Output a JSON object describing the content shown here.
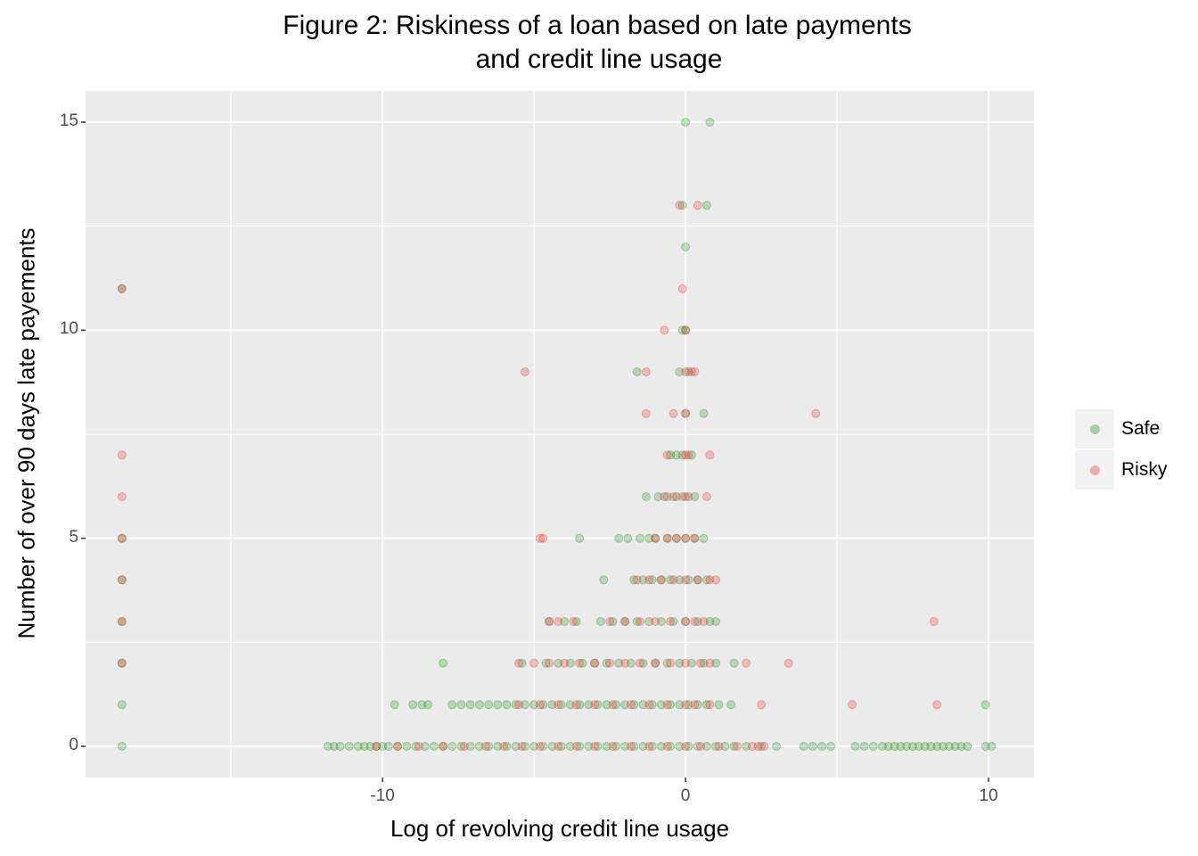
{
  "chart_data": {
    "type": "scatter",
    "title": "Figure 2: Riskiness of a loan based on late payments",
    "title_line2": "and credit line usage",
    "xlabel": "Log of revolving credit line usage",
    "ylabel": "Number of over 90 days late payements",
    "xlim": [
      -19.8,
      11.5
    ],
    "ylim": [
      -0.75,
      15.75
    ],
    "x_ticks": [
      -10,
      0,
      10
    ],
    "x_tick_labels": [
      "-10",
      "0",
      "10"
    ],
    "y_ticks": [
      0,
      5,
      10,
      15
    ],
    "y_tick_labels": [
      "0",
      "5",
      "10",
      "15"
    ],
    "x_minor_gridlines": [
      -15,
      -5,
      5
    ],
    "y_minor_gridlines": [
      2.5,
      7.5,
      12.5
    ],
    "grid": true,
    "panel_background": "#ebebeb",
    "legend_position": "right",
    "marker_alpha": 0.25,
    "series": [
      {
        "name": "Safe",
        "color": "#228b22",
        "points": [
          [
            -18.6,
            0
          ],
          [
            -18.6,
            1
          ],
          [
            -18.6,
            2
          ],
          [
            -18.6,
            3
          ],
          [
            -18.6,
            4
          ],
          [
            -18.6,
            5
          ],
          [
            -18.6,
            11
          ],
          [
            -11.8,
            0
          ],
          [
            -11.6,
            0
          ],
          [
            -11.4,
            0
          ],
          [
            -11.1,
            0
          ],
          [
            -10.8,
            0
          ],
          [
            -10.6,
            0
          ],
          [
            -10.4,
            0
          ],
          [
            -10.2,
            0
          ],
          [
            -10.0,
            0
          ],
          [
            -9.8,
            0
          ],
          [
            -9.5,
            0
          ],
          [
            -9.2,
            0
          ],
          [
            -8.9,
            0
          ],
          [
            -8.6,
            0
          ],
          [
            -8.3,
            0
          ],
          [
            -8.0,
            0
          ],
          [
            -7.7,
            0
          ],
          [
            -7.4,
            0
          ],
          [
            -7.1,
            0
          ],
          [
            -6.8,
            0
          ],
          [
            -6.5,
            0
          ],
          [
            -6.2,
            0
          ],
          [
            -5.9,
            0
          ],
          [
            -5.6,
            0
          ],
          [
            -5.3,
            0
          ],
          [
            -5.0,
            0
          ],
          [
            -4.7,
            0
          ],
          [
            -4.4,
            0
          ],
          [
            -4.1,
            0
          ],
          [
            -3.8,
            0
          ],
          [
            -3.5,
            0
          ],
          [
            -3.2,
            0
          ],
          [
            -2.9,
            0
          ],
          [
            -2.6,
            0
          ],
          [
            -2.3,
            0
          ],
          [
            -2.0,
            0
          ],
          [
            -1.7,
            0
          ],
          [
            -1.4,
            0
          ],
          [
            -1.1,
            0
          ],
          [
            -0.8,
            0
          ],
          [
            -0.5,
            0
          ],
          [
            -0.2,
            0
          ],
          [
            0.1,
            0
          ],
          [
            0.4,
            0
          ],
          [
            0.7,
            0
          ],
          [
            1.0,
            0
          ],
          [
            1.3,
            0
          ],
          [
            1.6,
            0
          ],
          [
            2.0,
            0
          ],
          [
            2.5,
            0
          ],
          [
            3.0,
            0
          ],
          [
            3.9,
            0
          ],
          [
            4.2,
            0
          ],
          [
            4.5,
            0
          ],
          [
            4.8,
            0
          ],
          [
            5.6,
            0
          ],
          [
            5.9,
            0
          ],
          [
            6.2,
            0
          ],
          [
            6.5,
            0
          ],
          [
            6.7,
            0
          ],
          [
            6.9,
            0
          ],
          [
            7.1,
            0
          ],
          [
            7.3,
            0
          ],
          [
            7.5,
            0
          ],
          [
            7.7,
            0
          ],
          [
            7.9,
            0
          ],
          [
            8.1,
            0
          ],
          [
            8.3,
            0
          ],
          [
            8.5,
            0
          ],
          [
            8.7,
            0
          ],
          [
            8.9,
            0
          ],
          [
            9.1,
            0
          ],
          [
            9.3,
            0
          ],
          [
            9.9,
            0
          ],
          [
            10.1,
            0
          ],
          [
            -9.6,
            1
          ],
          [
            -9.0,
            1
          ],
          [
            -8.7,
            1
          ],
          [
            -8.5,
            1
          ],
          [
            -7.7,
            1
          ],
          [
            -7.4,
            1
          ],
          [
            -7.1,
            1
          ],
          [
            -6.8,
            1
          ],
          [
            -6.5,
            1
          ],
          [
            -6.2,
            1
          ],
          [
            -5.9,
            1
          ],
          [
            -5.6,
            1
          ],
          [
            -5.3,
            1
          ],
          [
            -5.0,
            1
          ],
          [
            -4.7,
            1
          ],
          [
            -4.4,
            1
          ],
          [
            -4.1,
            1
          ],
          [
            -3.8,
            1
          ],
          [
            -3.5,
            1
          ],
          [
            -3.2,
            1
          ],
          [
            -2.9,
            1
          ],
          [
            -2.6,
            1
          ],
          [
            -2.3,
            1
          ],
          [
            -2.0,
            1
          ],
          [
            -1.7,
            1
          ],
          [
            -1.4,
            1
          ],
          [
            -1.1,
            1
          ],
          [
            -0.8,
            1
          ],
          [
            -0.5,
            1
          ],
          [
            -0.2,
            1
          ],
          [
            0.1,
            1
          ],
          [
            0.4,
            1
          ],
          [
            0.7,
            1
          ],
          [
            1.1,
            1
          ],
          [
            1.5,
            1
          ],
          [
            9.9,
            1
          ],
          [
            -8.0,
            2
          ],
          [
            -5.4,
            2
          ],
          [
            -4.6,
            2
          ],
          [
            -4.2,
            2
          ],
          [
            -3.8,
            2
          ],
          [
            -3.4,
            2
          ],
          [
            -3.0,
            2
          ],
          [
            -2.6,
            2
          ],
          [
            -2.2,
            2
          ],
          [
            -1.8,
            2
          ],
          [
            -1.4,
            2
          ],
          [
            -1.0,
            2
          ],
          [
            -0.6,
            2
          ],
          [
            -0.2,
            2
          ],
          [
            0.2,
            2
          ],
          [
            0.6,
            2
          ],
          [
            1.0,
            2
          ],
          [
            1.6,
            2
          ],
          [
            -4.5,
            3
          ],
          [
            -4.0,
            3
          ],
          [
            -3.6,
            3
          ],
          [
            -2.8,
            3
          ],
          [
            -2.4,
            3
          ],
          [
            -2.0,
            3
          ],
          [
            -1.6,
            3
          ],
          [
            -1.2,
            3
          ],
          [
            -0.8,
            3
          ],
          [
            -0.4,
            3
          ],
          [
            0.0,
            3
          ],
          [
            0.4,
            3
          ],
          [
            0.8,
            3
          ],
          [
            1.0,
            3
          ],
          [
            -2.7,
            4
          ],
          [
            -1.7,
            4
          ],
          [
            -1.4,
            4
          ],
          [
            -1.1,
            4
          ],
          [
            -0.8,
            4
          ],
          [
            -0.5,
            4
          ],
          [
            -0.2,
            4
          ],
          [
            0.1,
            4
          ],
          [
            0.4,
            4
          ],
          [
            0.7,
            4
          ],
          [
            -3.5,
            5
          ],
          [
            -2.2,
            5
          ],
          [
            -1.9,
            5
          ],
          [
            -1.5,
            5
          ],
          [
            -1.2,
            5
          ],
          [
            -1.0,
            5
          ],
          [
            -0.6,
            5
          ],
          [
            -0.3,
            5
          ],
          [
            0.0,
            5
          ],
          [
            0.3,
            5
          ],
          [
            0.6,
            5
          ],
          [
            -1.3,
            6
          ],
          [
            -0.9,
            6
          ],
          [
            -0.6,
            6
          ],
          [
            -0.3,
            6
          ],
          [
            0.0,
            6
          ],
          [
            0.3,
            6
          ],
          [
            -0.5,
            7
          ],
          [
            -0.3,
            7
          ],
          [
            -0.1,
            7
          ],
          [
            0.2,
            7
          ],
          [
            0.0,
            8
          ],
          [
            0.6,
            8
          ],
          [
            -1.6,
            9
          ],
          [
            -0.2,
            9
          ],
          [
            0.1,
            9
          ],
          [
            -0.1,
            10
          ],
          [
            0.0,
            10
          ],
          [
            0.0,
            12
          ],
          [
            -0.1,
            13
          ],
          [
            0.7,
            13
          ],
          [
            0.0,
            15
          ],
          [
            0.8,
            15
          ]
        ]
      },
      {
        "name": "Risky",
        "color": "#e8302a",
        "points": [
          [
            -18.6,
            2
          ],
          [
            -18.6,
            3
          ],
          [
            -18.6,
            4
          ],
          [
            -18.6,
            5
          ],
          [
            -18.6,
            6
          ],
          [
            -18.6,
            7
          ],
          [
            -18.6,
            11
          ],
          [
            -10.2,
            0
          ],
          [
            -9.5,
            0
          ],
          [
            -8.8,
            0
          ],
          [
            -8.0,
            0
          ],
          [
            -7.3,
            0
          ],
          [
            -6.6,
            0
          ],
          [
            -6.0,
            0
          ],
          [
            -5.4,
            0
          ],
          [
            -4.8,
            0
          ],
          [
            -4.2,
            0
          ],
          [
            -3.6,
            0
          ],
          [
            -3.0,
            0
          ],
          [
            -2.4,
            0
          ],
          [
            -1.8,
            0
          ],
          [
            -1.2,
            0
          ],
          [
            -0.6,
            0
          ],
          [
            0.0,
            0
          ],
          [
            0.5,
            0
          ],
          [
            1.1,
            0
          ],
          [
            1.7,
            0
          ],
          [
            2.2,
            0
          ],
          [
            2.4,
            0
          ],
          [
            2.6,
            0
          ],
          [
            -5.5,
            1
          ],
          [
            -4.8,
            1
          ],
          [
            -4.2,
            1
          ],
          [
            -3.6,
            1
          ],
          [
            -3.0,
            1
          ],
          [
            -2.4,
            1
          ],
          [
            -1.8,
            1
          ],
          [
            -1.2,
            1
          ],
          [
            -0.6,
            1
          ],
          [
            0.0,
            1
          ],
          [
            0.3,
            1
          ],
          [
            0.8,
            1
          ],
          [
            2.5,
            1
          ],
          [
            5.5,
            1
          ],
          [
            8.3,
            1
          ],
          [
            -5.5,
            2
          ],
          [
            -5.0,
            2
          ],
          [
            -4.5,
            2
          ],
          [
            -4.0,
            2
          ],
          [
            -3.5,
            2
          ],
          [
            -3.0,
            2
          ],
          [
            -2.5,
            2
          ],
          [
            -2.0,
            2
          ],
          [
            -1.5,
            2
          ],
          [
            -1.0,
            2
          ],
          [
            -0.5,
            2
          ],
          [
            0.0,
            2
          ],
          [
            0.5,
            2
          ],
          [
            0.8,
            2
          ],
          [
            2.0,
            2
          ],
          [
            3.4,
            2
          ],
          [
            -4.5,
            3
          ],
          [
            -4.2,
            3
          ],
          [
            -3.7,
            3
          ],
          [
            -2.5,
            3
          ],
          [
            -2.0,
            3
          ],
          [
            -1.5,
            3
          ],
          [
            -1.0,
            3
          ],
          [
            -0.5,
            3
          ],
          [
            0.0,
            3
          ],
          [
            0.3,
            3
          ],
          [
            0.6,
            3
          ],
          [
            8.2,
            3
          ],
          [
            -1.6,
            4
          ],
          [
            -1.2,
            4
          ],
          [
            -0.8,
            4
          ],
          [
            -0.4,
            4
          ],
          [
            0.0,
            4
          ],
          [
            0.4,
            4
          ],
          [
            0.8,
            4
          ],
          [
            1.0,
            4
          ],
          [
            -4.7,
            5
          ],
          [
            -4.8,
            5
          ],
          [
            -1.0,
            5
          ],
          [
            -0.6,
            5
          ],
          [
            -0.3,
            5
          ],
          [
            0.0,
            5
          ],
          [
            0.3,
            5
          ],
          [
            -0.7,
            6
          ],
          [
            -0.4,
            6
          ],
          [
            -0.1,
            6
          ],
          [
            0.1,
            6
          ],
          [
            0.7,
            6
          ],
          [
            -0.6,
            7
          ],
          [
            0.0,
            7
          ],
          [
            0.1,
            7
          ],
          [
            0.8,
            7
          ],
          [
            -1.3,
            8
          ],
          [
            -0.4,
            8
          ],
          [
            0.0,
            8
          ],
          [
            4.3,
            8
          ],
          [
            -5.3,
            9
          ],
          [
            -1.3,
            9
          ],
          [
            0.0,
            9
          ],
          [
            0.2,
            9
          ],
          [
            0.3,
            9
          ],
          [
            -0.7,
            10
          ],
          [
            0.0,
            10
          ],
          [
            -0.1,
            11
          ],
          [
            -0.2,
            13
          ],
          [
            0.4,
            13
          ]
        ]
      }
    ]
  }
}
